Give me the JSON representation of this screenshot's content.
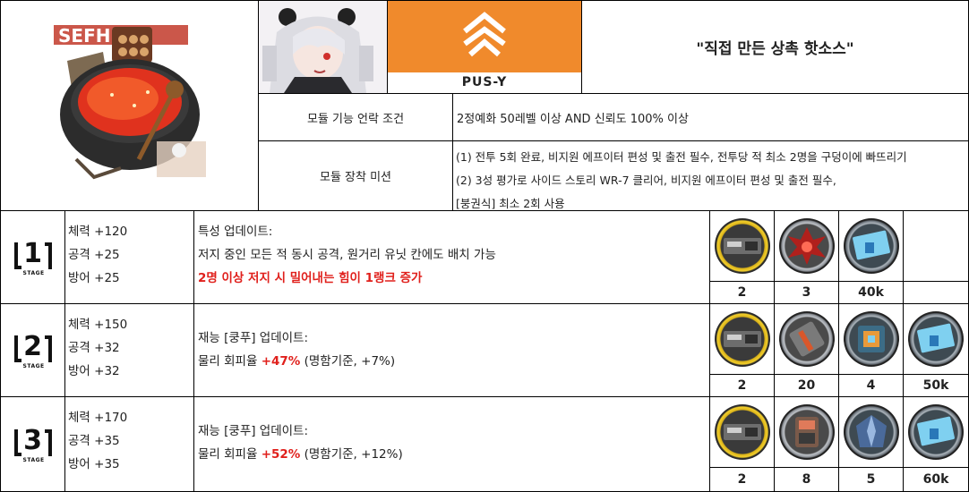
{
  "header": {
    "badge_code": "PUS-Y",
    "module_name": "\"직접 만든 상촉 핫소스\"",
    "unlock_label": "모듈 기능 언락 조건",
    "unlock_value": "2정예화 50레벨 이상 AND 신뢰도 100% 이상",
    "mission_label": "모듈 장착 미션",
    "mission_lines": [
      "(1) 전투 5회 완료, 비지원 에프이터 편성 및 출전 필수, 전투당 적 최소 2명을 구덩이에 빠뜨리기",
      "(2) 3성 평가로 사이드 스토리 WR-7 클리어, 비지원 에프이터 편성 및 출전 필수,",
      "[붕권식] 최소 2회 사용"
    ],
    "illustration_text": "SEFHR"
  },
  "stages": [
    {
      "num": "1",
      "tag": "STAGE",
      "stats": [
        "체력 +120",
        "공격 +25",
        "방어 +25"
      ],
      "desc_title": "특성 업데이트:",
      "desc_line": "저지 중인 모든 적 동시 공격, 원거리 유닛 칸에도 배치 가능",
      "desc_highlight": "2명 이상 저지 시 밀어내는 힘이 1랭크 증가",
      "materials": [
        {
          "icon": "data-supplement-icon",
          "count": "2"
        },
        {
          "icon": "red-crystal-icon",
          "count": "3"
        },
        {
          "icon": "lmd-ticket-icon",
          "count": "40k"
        }
      ]
    },
    {
      "num": "2",
      "tag": "STAGE",
      "stats": [
        "체력 +150",
        "공격 +32",
        "방어 +32"
      ],
      "desc_title": "재능 [쿵푸] 업데이트:",
      "desc_pre": "물리 회피율 ",
      "desc_bonus": "+47%",
      "desc_post": " (명함기준, +7%)",
      "materials": [
        {
          "icon": "data-supplement-icon",
          "count": "2"
        },
        {
          "icon": "metal-plate-icon",
          "count": "20"
        },
        {
          "icon": "circuit-block-icon",
          "count": "4"
        },
        {
          "icon": "lmd-ticket-icon",
          "count": "50k"
        }
      ]
    },
    {
      "num": "3",
      "tag": "STAGE",
      "stats": [
        "체력 +170",
        "공격 +35",
        "방어 +35"
      ],
      "desc_title": "재능 [쿵푸] 업데이트:",
      "desc_pre": "물리 회피율 ",
      "desc_bonus": "+52%",
      "desc_post": " (명함기준, +12%)",
      "materials": [
        {
          "icon": "data-supplement-icon",
          "count": "2"
        },
        {
          "icon": "copper-device-icon",
          "count": "8"
        },
        {
          "icon": "blue-crystal-icon",
          "count": "5"
        },
        {
          "icon": "lmd-ticket-icon",
          "count": "60k"
        }
      ]
    }
  ],
  "colors": {
    "badge_orange": "#f08a2c",
    "highlight_red": "#e0201c"
  }
}
